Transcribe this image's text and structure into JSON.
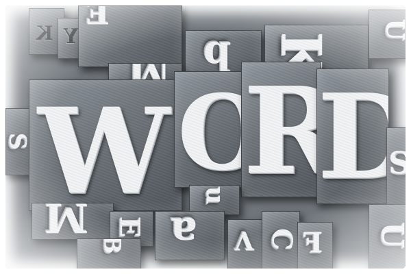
{
  "letters": {
    "main_w": "W",
    "main_o": "O",
    "main_r": "R",
    "main_d": "D",
    "top_k": "K",
    "top_e": "E",
    "top_y": "Y",
    "top_left_small": "K",
    "top_b": "b",
    "top_m": "M",
    "left_s": "S",
    "bottom_m": "M",
    "bottom_e": "E",
    "bottom_a": "a",
    "bottom_v": "V",
    "bottom_c": "C",
    "bottom_f": "F",
    "bottom_u": "u",
    "bottom_b": "B",
    "right_u": "U",
    "right_s": "S",
    "right_u2": "U"
  }
}
